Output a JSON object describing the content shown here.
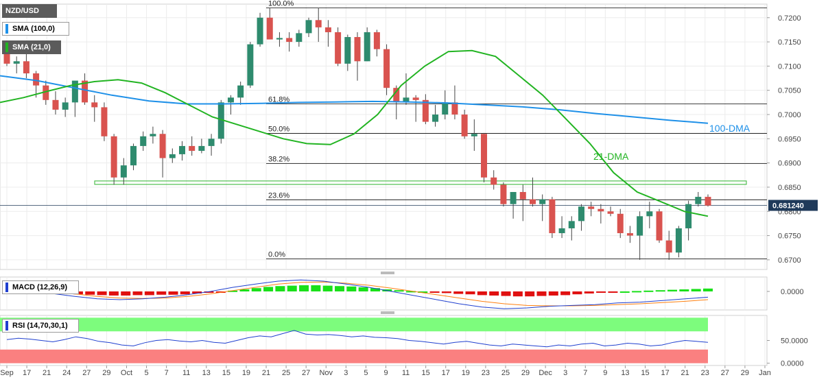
{
  "colors": {
    "bull": "#2e8b6e",
    "bear": "#d9534f",
    "sma100": "#1e90e8",
    "sma21": "#22b422",
    "macd_line": "#1f3fcf",
    "signal_line": "#ff7f0e",
    "hist_pos": "#19e019",
    "hist_neg": "#e01010",
    "rsi_line": "#1f3fcf",
    "rsi_upper_zone": "#7dfc7d",
    "rsi_lower_zone": "#fa8080",
    "price_badge": "#1f3a5a",
    "fib_line": "#000000",
    "support_zone": "#4fbf4f"
  },
  "legend": {
    "symbol": "NZD/USD",
    "sma100": "SMA (100,0)",
    "sma21": "SMA (21,0)",
    "macd": "MACD (12,26,9)",
    "rsi": "RSI (14,70,30,1)"
  },
  "annotations": {
    "dma100": "100-DMA",
    "dma21": "21-DMA",
    "last_price": "0.681240"
  },
  "chart_data": {
    "type": "candlestick",
    "symbol": "NZD/USD",
    "price_axis": {
      "ticks": [
        "0.7200",
        "0.7150",
        "0.7100",
        "0.7050",
        "0.7000",
        "0.6950",
        "0.6900",
        "0.6850",
        "0.6800",
        "0.6750",
        "0.6700"
      ],
      "range": [
        0.668,
        0.7228
      ]
    },
    "x_axis": {
      "ticks": [
        "Sep",
        "17",
        "21",
        "24",
        "27",
        "29",
        "Oct",
        "5",
        "7",
        "11",
        "13",
        "15",
        "19",
        "21",
        "25",
        "27",
        "Nov",
        "3",
        "5",
        "9",
        "11",
        "15",
        "17",
        "19",
        "23",
        "25",
        "29",
        "Dec",
        "3",
        "7",
        "9",
        "13",
        "15",
        "17",
        "21",
        "23",
        "27",
        "29",
        "Jan"
      ]
    },
    "last_price": 0.68124,
    "fibonacci": [
      {
        "label": "100.0%",
        "value": 0.722
      },
      {
        "label": "61.8%",
        "value": 0.7022
      },
      {
        "label": "50.0%",
        "value": 0.6961
      },
      {
        "label": "38.2%",
        "value": 0.6899
      },
      {
        "label": "23.6%",
        "value": 0.6824
      },
      {
        "label": "0.0%",
        "value": 0.6702
      }
    ],
    "support_zone": {
      "low": 0.6855,
      "high": 0.686
    },
    "candles": [
      [
        0.7125,
        0.7138,
        0.71,
        0.7105
      ],
      [
        0.7105,
        0.712,
        0.7085,
        0.711
      ],
      [
        0.711,
        0.7125,
        0.7075,
        0.7085
      ],
      [
        0.7085,
        0.709,
        0.7035,
        0.706
      ],
      [
        0.706,
        0.707,
        0.702,
        0.703
      ],
      [
        0.703,
        0.7048,
        0.7,
        0.701
      ],
      [
        0.701,
        0.7035,
        0.6995,
        0.7025
      ],
      [
        0.7025,
        0.7068,
        0.6995,
        0.707
      ],
      [
        0.707,
        0.7085,
        0.702,
        0.7025
      ],
      [
        0.7025,
        0.704,
        0.6985,
        0.7015
      ],
      [
        0.7015,
        0.7025,
        0.6945,
        0.6955
      ],
      [
        0.6955,
        0.696,
        0.6855,
        0.687
      ],
      [
        0.687,
        0.691,
        0.6855,
        0.6895
      ],
      [
        0.6895,
        0.694,
        0.6885,
        0.6935
      ],
      [
        0.6935,
        0.6965,
        0.6925,
        0.6955
      ],
      [
        0.6955,
        0.6975,
        0.694,
        0.696
      ],
      [
        0.696,
        0.6968,
        0.687,
        0.691
      ],
      [
        0.691,
        0.693,
        0.69,
        0.6918
      ],
      [
        0.6918,
        0.6945,
        0.6905,
        0.6935
      ],
      [
        0.6935,
        0.6955,
        0.6915,
        0.6925
      ],
      [
        0.6925,
        0.695,
        0.692,
        0.6935
      ],
      [
        0.6935,
        0.696,
        0.6915,
        0.695
      ],
      [
        0.695,
        0.703,
        0.694,
        0.7025
      ],
      [
        0.7025,
        0.704,
        0.7,
        0.7035
      ],
      [
        0.7035,
        0.7068,
        0.702,
        0.706
      ],
      [
        0.706,
        0.715,
        0.7055,
        0.7145
      ],
      [
        0.7145,
        0.721,
        0.714,
        0.72
      ],
      [
        0.72,
        0.722,
        0.716,
        0.7155
      ],
      [
        0.7155,
        0.717,
        0.714,
        0.7158
      ],
      [
        0.7158,
        0.717,
        0.713,
        0.715
      ],
      [
        0.715,
        0.7175,
        0.714,
        0.7168
      ],
      [
        0.7168,
        0.72,
        0.716,
        0.7195
      ],
      [
        0.7195,
        0.722,
        0.715,
        0.718
      ],
      [
        0.718,
        0.7195,
        0.714,
        0.717
      ],
      [
        0.717,
        0.718,
        0.71,
        0.7105
      ],
      [
        0.7105,
        0.7165,
        0.709,
        0.716
      ],
      [
        0.716,
        0.717,
        0.707,
        0.711
      ],
      [
        0.711,
        0.718,
        0.711,
        0.717
      ],
      [
        0.717,
        0.7175,
        0.712,
        0.7135
      ],
      [
        0.7135,
        0.7145,
        0.704,
        0.7055
      ],
      [
        0.7055,
        0.706,
        0.699,
        0.7025
      ],
      [
        0.7025,
        0.7085,
        0.702,
        0.7035
      ],
      [
        0.7035,
        0.704,
        0.6985,
        0.703
      ],
      [
        0.703,
        0.7042,
        0.698,
        0.6985
      ],
      [
        0.6985,
        0.702,
        0.6975,
        0.7
      ],
      [
        0.7,
        0.705,
        0.699,
        0.7025
      ],
      [
        0.7025,
        0.706,
        0.699,
        0.7
      ],
      [
        0.7,
        0.701,
        0.695,
        0.6955
      ],
      [
        0.6955,
        0.699,
        0.6925,
        0.696
      ],
      [
        0.696,
        0.6962,
        0.686,
        0.687
      ],
      [
        0.687,
        0.6885,
        0.6845,
        0.6855
      ],
      [
        0.6855,
        0.686,
        0.681,
        0.6815
      ],
      [
        0.6815,
        0.684,
        0.6785,
        0.684
      ],
      [
        0.684,
        0.6855,
        0.678,
        0.6825
      ],
      [
        0.6825,
        0.687,
        0.681,
        0.6815
      ],
      [
        0.6815,
        0.6835,
        0.678,
        0.6825
      ],
      [
        0.6825,
        0.683,
        0.6745,
        0.6755
      ],
      [
        0.6755,
        0.679,
        0.6745,
        0.6765
      ],
      [
        0.6765,
        0.679,
        0.674,
        0.678
      ],
      [
        0.678,
        0.6815,
        0.676,
        0.681
      ],
      [
        0.681,
        0.682,
        0.679,
        0.6805
      ],
      [
        0.6805,
        0.6815,
        0.6775,
        0.68
      ],
      [
        0.68,
        0.681,
        0.679,
        0.6795
      ],
      [
        0.6795,
        0.6805,
        0.6745,
        0.6755
      ],
      [
        0.6755,
        0.677,
        0.6735,
        0.675
      ],
      [
        0.675,
        0.68,
        0.67,
        0.679
      ],
      [
        0.679,
        0.682,
        0.6765,
        0.68
      ],
      [
        0.68,
        0.6805,
        0.6735,
        0.674
      ],
      [
        0.674,
        0.676,
        0.67,
        0.6715
      ],
      [
        0.6715,
        0.677,
        0.6705,
        0.6765
      ],
      [
        0.6765,
        0.6822,
        0.674,
        0.6815
      ],
      [
        0.6815,
        0.684,
        0.681,
        0.683
      ],
      [
        0.683,
        0.6835,
        0.681,
        0.6812
      ]
    ],
    "sma21_values": [
      0.7025,
      0.7035,
      0.7048,
      0.706,
      0.7068,
      0.7072,
      0.7065,
      0.7045,
      0.702,
      0.6995,
      0.698,
      0.6965,
      0.695,
      0.694,
      0.6938,
      0.696,
      0.7,
      0.706,
      0.71,
      0.713,
      0.7132,
      0.712,
      0.708,
      0.704,
      0.699,
      0.694,
      0.688,
      0.684,
      0.682,
      0.68,
      0.679
    ],
    "sma100_values": [
      0.708,
      0.707,
      0.7055,
      0.704,
      0.7028,
      0.7022,
      0.7022,
      0.7023,
      0.7025,
      0.7026,
      0.7027,
      0.7026,
      0.7024,
      0.702,
      0.7016,
      0.701,
      0.7002,
      0.6995,
      0.6988,
      0.6982
    ],
    "macd": {
      "ticks": [
        "0.0000"
      ],
      "range": [
        -0.0045,
        0.0035
      ],
      "histogram": [
        -0.0002,
        -0.0003,
        -0.0004,
        -0.0005,
        -0.0006,
        -0.0006,
        -0.0007,
        -0.0008,
        -0.0009,
        -0.001,
        -0.001,
        -0.0009,
        -0.0009,
        -0.0008,
        -0.0008,
        -0.0007,
        -0.0005,
        -0.0003,
        -0.0001,
        0.0002,
        0.0005,
        0.0008,
        0.0011,
        0.0013,
        0.0014,
        0.0015,
        0.0015,
        0.0014,
        0.0013,
        0.0012,
        0.001,
        0.0008,
        0.0005,
        0.0003,
        0.0001,
        0.0,
        -0.0002,
        -0.0004,
        -0.0006,
        -0.0007,
        -0.0009,
        -0.001,
        -0.0011,
        -0.0012,
        -0.0012,
        -0.0011,
        -0.001,
        -0.0009,
        -0.0007,
        -0.0005,
        -0.0003,
        -0.0001,
        0.0,
        0.0001,
        0.0002,
        0.0003,
        0.0004,
        0.0005,
        0.0006,
        0.0007
      ],
      "macd_line": [
        0.0008,
        0.0004,
        -0.0005,
        -0.0012,
        -0.0018,
        -0.002,
        -0.0018,
        -0.0014,
        -0.0008,
        0.0,
        0.001,
        0.0018,
        0.0025,
        0.0028,
        0.0025,
        0.0018,
        0.001,
        0.0,
        -0.001,
        -0.002,
        -0.003,
        -0.0038,
        -0.0042,
        -0.004,
        -0.0036,
        -0.0034,
        -0.0032,
        -0.0028,
        -0.0026,
        -0.0022,
        -0.0018,
        -0.0014
      ],
      "signal_line": [
        0.001,
        0.0006,
        0.0,
        -0.0006,
        -0.0012,
        -0.0016,
        -0.0017,
        -0.0016,
        -0.0012,
        -0.0006,
        0.0002,
        0.001,
        0.0018,
        0.0022,
        0.0023,
        0.002,
        0.0015,
        0.0008,
        0.0,
        -0.0008,
        -0.0016,
        -0.0024,
        -0.003,
        -0.0034,
        -0.0035,
        -0.0035,
        -0.0034,
        -0.0032,
        -0.003,
        -0.0027,
        -0.0024,
        -0.002
      ]
    },
    "rsi": {
      "ticks": [
        "50.0000",
        "0.0000"
      ],
      "range": [
        -5,
        105
      ],
      "overbought": 70,
      "oversold": 30,
      "values": [
        52,
        55,
        53,
        50,
        47,
        52,
        58,
        54,
        48,
        45,
        40,
        38,
        45,
        50,
        52,
        49,
        47,
        50,
        46,
        44,
        50,
        56,
        60,
        58,
        65,
        72,
        64,
        62,
        63,
        61,
        58,
        60,
        57,
        56,
        54,
        50,
        48,
        45,
        42,
        46,
        48,
        44,
        40,
        38,
        42,
        40,
        38,
        36,
        40,
        38,
        42,
        44,
        38,
        40,
        44,
        42,
        38,
        40,
        46,
        50,
        48,
        46
      ]
    }
  }
}
